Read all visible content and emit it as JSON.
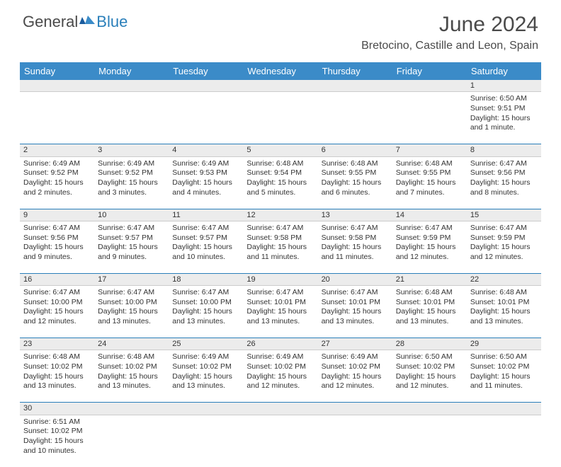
{
  "logo": {
    "text_a": "General",
    "text_b": "Blue"
  },
  "title": "June 2024",
  "location": "Bretocino, Castille and Leon, Spain",
  "colors": {
    "header_bg": "#3b8bc8",
    "header_text": "#ffffff",
    "border": "#2a7fba",
    "daynum_bg": "#ececec",
    "logo_blue": "#2a7fba",
    "body_text": "#333333"
  },
  "weekdays": [
    "Sunday",
    "Monday",
    "Tuesday",
    "Wednesday",
    "Thursday",
    "Friday",
    "Saturday"
  ],
  "weeks": [
    [
      null,
      null,
      null,
      null,
      null,
      null,
      {
        "n": "1",
        "sunrise": "6:50 AM",
        "sunset": "9:51 PM",
        "daylight": "15 hours and 1 minute."
      }
    ],
    [
      {
        "n": "2",
        "sunrise": "6:49 AM",
        "sunset": "9:52 PM",
        "daylight": "15 hours and 2 minutes."
      },
      {
        "n": "3",
        "sunrise": "6:49 AM",
        "sunset": "9:52 PM",
        "daylight": "15 hours and 3 minutes."
      },
      {
        "n": "4",
        "sunrise": "6:49 AM",
        "sunset": "9:53 PM",
        "daylight": "15 hours and 4 minutes."
      },
      {
        "n": "5",
        "sunrise": "6:48 AM",
        "sunset": "9:54 PM",
        "daylight": "15 hours and 5 minutes."
      },
      {
        "n": "6",
        "sunrise": "6:48 AM",
        "sunset": "9:55 PM",
        "daylight": "15 hours and 6 minutes."
      },
      {
        "n": "7",
        "sunrise": "6:48 AM",
        "sunset": "9:55 PM",
        "daylight": "15 hours and 7 minutes."
      },
      {
        "n": "8",
        "sunrise": "6:47 AM",
        "sunset": "9:56 PM",
        "daylight": "15 hours and 8 minutes."
      }
    ],
    [
      {
        "n": "9",
        "sunrise": "6:47 AM",
        "sunset": "9:56 PM",
        "daylight": "15 hours and 9 minutes."
      },
      {
        "n": "10",
        "sunrise": "6:47 AM",
        "sunset": "9:57 PM",
        "daylight": "15 hours and 9 minutes."
      },
      {
        "n": "11",
        "sunrise": "6:47 AM",
        "sunset": "9:57 PM",
        "daylight": "15 hours and 10 minutes."
      },
      {
        "n": "12",
        "sunrise": "6:47 AM",
        "sunset": "9:58 PM",
        "daylight": "15 hours and 11 minutes."
      },
      {
        "n": "13",
        "sunrise": "6:47 AM",
        "sunset": "9:58 PM",
        "daylight": "15 hours and 11 minutes."
      },
      {
        "n": "14",
        "sunrise": "6:47 AM",
        "sunset": "9:59 PM",
        "daylight": "15 hours and 12 minutes."
      },
      {
        "n": "15",
        "sunrise": "6:47 AM",
        "sunset": "9:59 PM",
        "daylight": "15 hours and 12 minutes."
      }
    ],
    [
      {
        "n": "16",
        "sunrise": "6:47 AM",
        "sunset": "10:00 PM",
        "daylight": "15 hours and 12 minutes."
      },
      {
        "n": "17",
        "sunrise": "6:47 AM",
        "sunset": "10:00 PM",
        "daylight": "15 hours and 13 minutes."
      },
      {
        "n": "18",
        "sunrise": "6:47 AM",
        "sunset": "10:00 PM",
        "daylight": "15 hours and 13 minutes."
      },
      {
        "n": "19",
        "sunrise": "6:47 AM",
        "sunset": "10:01 PM",
        "daylight": "15 hours and 13 minutes."
      },
      {
        "n": "20",
        "sunrise": "6:47 AM",
        "sunset": "10:01 PM",
        "daylight": "15 hours and 13 minutes."
      },
      {
        "n": "21",
        "sunrise": "6:48 AM",
        "sunset": "10:01 PM",
        "daylight": "15 hours and 13 minutes."
      },
      {
        "n": "22",
        "sunrise": "6:48 AM",
        "sunset": "10:01 PM",
        "daylight": "15 hours and 13 minutes."
      }
    ],
    [
      {
        "n": "23",
        "sunrise": "6:48 AM",
        "sunset": "10:02 PM",
        "daylight": "15 hours and 13 minutes."
      },
      {
        "n": "24",
        "sunrise": "6:48 AM",
        "sunset": "10:02 PM",
        "daylight": "15 hours and 13 minutes."
      },
      {
        "n": "25",
        "sunrise": "6:49 AM",
        "sunset": "10:02 PM",
        "daylight": "15 hours and 13 minutes."
      },
      {
        "n": "26",
        "sunrise": "6:49 AM",
        "sunset": "10:02 PM",
        "daylight": "15 hours and 12 minutes."
      },
      {
        "n": "27",
        "sunrise": "6:49 AM",
        "sunset": "10:02 PM",
        "daylight": "15 hours and 12 minutes."
      },
      {
        "n": "28",
        "sunrise": "6:50 AM",
        "sunset": "10:02 PM",
        "daylight": "15 hours and 12 minutes."
      },
      {
        "n": "29",
        "sunrise": "6:50 AM",
        "sunset": "10:02 PM",
        "daylight": "15 hours and 11 minutes."
      }
    ],
    [
      {
        "n": "30",
        "sunrise": "6:51 AM",
        "sunset": "10:02 PM",
        "daylight": "15 hours and 10 minutes."
      },
      null,
      null,
      null,
      null,
      null,
      null
    ]
  ],
  "labels": {
    "sunrise": "Sunrise:",
    "sunset": "Sunset:",
    "daylight": "Daylight:"
  }
}
